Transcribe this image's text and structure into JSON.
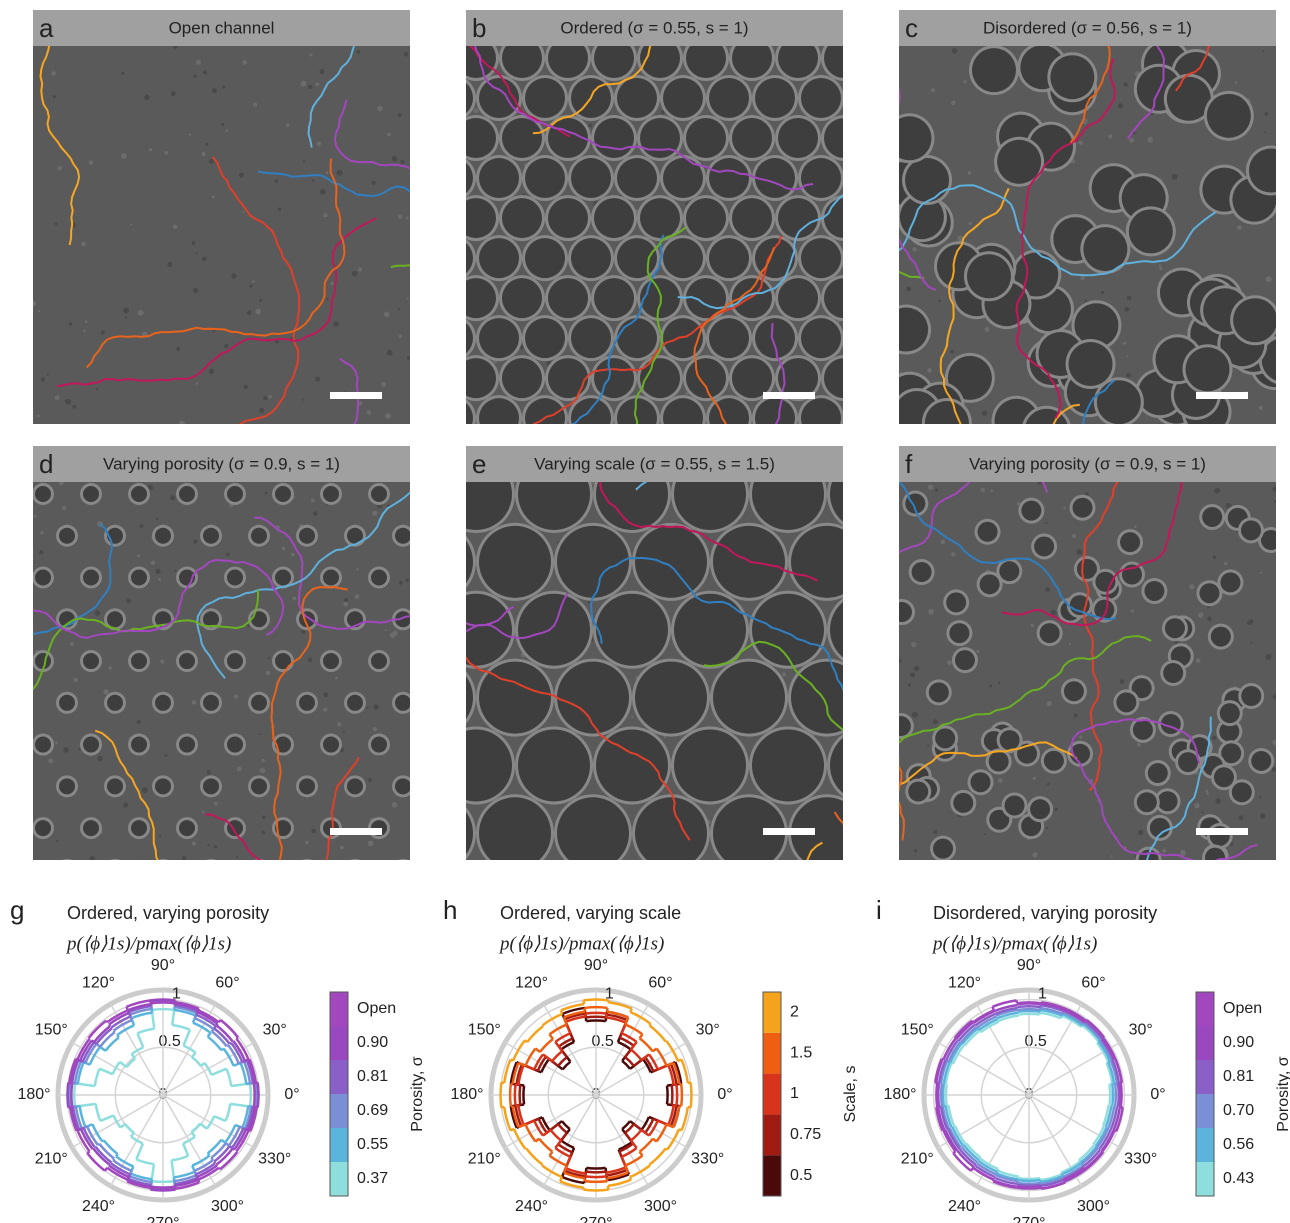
{
  "panels": [
    {
      "label": "a",
      "title": "Open channel"
    },
    {
      "label": "b",
      "title": "Ordered (σ = 0.55, s = 1)"
    },
    {
      "label": "c",
      "title": "Disordered (σ = 0.56, s = 1)"
    },
    {
      "label": "d",
      "title": "Varying porosity (σ = 0.9, s = 1)"
    },
    {
      "label": "e",
      "title": "Varying scale (σ = 0.55, s = 1.5)"
    },
    {
      "label": "f",
      "title": "Varying porosity (σ = 0.9, s = 1)"
    }
  ],
  "chart_data": [
    {
      "type": "polar",
      "label": "g",
      "title": "Ordered, varying porosity",
      "subtitle": "p(⟨ϕ⟩1s)/pmax(⟨ϕ⟩1s)",
      "rlim": [
        0,
        1.1
      ],
      "rticks": [
        0,
        0.5,
        1
      ],
      "thetaticks": [
        {
          "value": 0,
          "label": "0°"
        },
        {
          "value": 30,
          "label": "30°"
        },
        {
          "value": 60,
          "label": "60°"
        },
        {
          "value": 90,
          "label": "90°"
        },
        {
          "value": 120,
          "label": "120°"
        },
        {
          "value": 150,
          "label": "150°"
        },
        {
          "value": 180,
          "label": "180°"
        },
        {
          "value": 210,
          "label": "210°"
        },
        {
          "value": 240,
          "label": "240°"
        },
        {
          "value": 270,
          "label": "270°"
        },
        {
          "value": 300,
          "label": "300°"
        },
        {
          "value": 330,
          "label": "330°"
        }
      ],
      "colorbar_label": "Porosity, σ",
      "series": [
        {
          "name": "0.37",
          "color": "#8fdede",
          "values": [
            0.92,
            0.72,
            0.55,
            0.5,
            0.56,
            0.74,
            0.9,
            0.7,
            0.54,
            0.48,
            0.57,
            0.72,
            0.93,
            0.71,
            0.56,
            0.5,
            0.55,
            0.73,
            0.91,
            0.69,
            0.55,
            0.49,
            0.58,
            0.71
          ]
        },
        {
          "name": "0.55",
          "color": "#5ab4dc",
          "values": [
            0.98,
            0.88,
            0.8,
            0.77,
            0.82,
            0.9,
            0.97,
            0.87,
            0.79,
            0.76,
            0.83,
            0.9,
            0.98,
            0.88,
            0.8,
            0.78,
            0.81,
            0.89,
            0.97,
            0.87,
            0.8,
            0.77,
            0.82,
            0.9
          ]
        },
        {
          "name": "0.69",
          "color": "#7a8fd6",
          "values": [
            0.99,
            0.92,
            0.86,
            0.84,
            0.87,
            0.93,
            0.98,
            0.91,
            0.85,
            0.83,
            0.88,
            0.93,
            0.99,
            0.92,
            0.86,
            0.84,
            0.86,
            0.92,
            0.98,
            0.91,
            0.86,
            0.83,
            0.87,
            0.93
          ]
        },
        {
          "name": "0.81",
          "color": "#8a5fc8",
          "values": [
            1,
            0.95,
            0.9,
            0.88,
            0.91,
            0.95,
            0.99,
            0.94,
            0.89,
            0.88,
            0.91,
            0.96,
            1,
            0.95,
            0.9,
            0.89,
            0.9,
            0.95,
            0.99,
            0.94,
            0.9,
            0.88,
            0.91,
            0.95
          ]
        },
        {
          "name": "0.90",
          "color": "#9a48c0",
          "values": [
            1,
            0.97,
            0.93,
            0.92,
            0.94,
            0.97,
            1,
            0.96,
            0.93,
            0.91,
            0.94,
            0.97,
            1,
            0.97,
            0.93,
            0.92,
            0.93,
            0.97,
            1,
            0.96,
            0.93,
            0.92,
            0.94,
            0.97
          ]
        },
        {
          "name": "Open",
          "color": "#a347bf",
          "values": [
            0.96,
            0.98,
            0.97,
            0.99,
            0.96,
            0.98,
            0.97,
            1,
            0.96,
            0.98,
            0.97,
            0.99,
            0.96,
            0.98,
            0.97,
            1,
            0.96,
            0.98,
            0.97,
            0.99,
            0.96,
            0.98,
            0.97,
            0.99
          ]
        }
      ]
    },
    {
      "type": "polar",
      "label": "h",
      "title": "Ordered, varying scale",
      "subtitle": "p(⟨ϕ⟩1s)/pmax(⟨ϕ⟩1s)",
      "rlim": [
        0,
        1.1
      ],
      "rticks": [
        0,
        0.5,
        1
      ],
      "thetaticks": [
        {
          "value": 0,
          "label": "0°"
        },
        {
          "value": 30,
          "label": "30°"
        },
        {
          "value": 60,
          "label": "60°"
        },
        {
          "value": 90,
          "label": "90°"
        },
        {
          "value": 120,
          "label": "120°"
        },
        {
          "value": 150,
          "label": "150°"
        },
        {
          "value": 180,
          "label": "180°"
        },
        {
          "value": 210,
          "label": "210°"
        },
        {
          "value": 240,
          "label": "240°"
        },
        {
          "value": 270,
          "label": "270°"
        },
        {
          "value": 300,
          "label": "300°"
        },
        {
          "value": 330,
          "label": "330°"
        }
      ],
      "colorbar_label": "Scale, s",
      "series": [
        {
          "name": "0.5",
          "color": "#4a0a0a",
          "values": [
            0.75,
            0.9,
            0.62,
            0.45,
            0.6,
            0.88,
            0.78,
            0.92,
            0.6,
            0.44,
            0.62,
            0.9,
            0.76,
            0.9,
            0.61,
            0.45,
            0.6,
            0.93,
            0.77,
            0.9,
            0.62,
            0.45,
            0.6,
            0.88
          ]
        },
        {
          "name": "0.75",
          "color": "#a01c12",
          "values": [
            0.8,
            0.85,
            0.65,
            0.5,
            0.65,
            0.85,
            0.82,
            0.86,
            0.64,
            0.5,
            0.66,
            0.84,
            0.8,
            0.85,
            0.65,
            0.5,
            0.65,
            0.86,
            0.81,
            0.85,
            0.64,
            0.5,
            0.65,
            0.85
          ]
        },
        {
          "name": "1",
          "color": "#d8341c",
          "values": [
            0.85,
            0.82,
            0.7,
            0.6,
            0.7,
            0.82,
            0.86,
            0.83,
            0.7,
            0.58,
            0.7,
            0.82,
            0.85,
            0.82,
            0.7,
            0.6,
            0.7,
            0.83,
            0.86,
            0.82,
            0.7,
            0.6,
            0.7,
            0.82
          ]
        },
        {
          "name": "1.5",
          "color": "#ee5f12",
          "values": [
            0.9,
            0.88,
            0.8,
            0.75,
            0.8,
            0.88,
            0.92,
            0.88,
            0.8,
            0.74,
            0.8,
            0.88,
            0.9,
            0.88,
            0.8,
            0.75,
            0.8,
            0.88,
            0.91,
            0.88,
            0.8,
            0.75,
            0.8,
            0.88
          ]
        },
        {
          "name": "2",
          "color": "#f5a21c",
          "values": [
            1,
            0.97,
            0.93,
            0.92,
            0.94,
            0.98,
            1,
            0.96,
            0.92,
            0.91,
            0.94,
            0.97,
            1,
            0.97,
            0.93,
            0.92,
            0.93,
            0.98,
            1,
            0.96,
            0.93,
            0.92,
            0.94,
            0.97
          ]
        }
      ]
    },
    {
      "type": "polar",
      "label": "i",
      "title": "Disordered, varying porosity",
      "subtitle": "p(⟨ϕ⟩1s)/pmax(⟨ϕ⟩1s)",
      "rlim": [
        0,
        1.1
      ],
      "rticks": [
        0,
        0.5,
        1
      ],
      "thetaticks": [
        {
          "value": 0,
          "label": "0°"
        },
        {
          "value": 30,
          "label": "30°"
        },
        {
          "value": 60,
          "label": "60°"
        },
        {
          "value": 90,
          "label": "90°"
        },
        {
          "value": 120,
          "label": "120°"
        },
        {
          "value": 150,
          "label": "150°"
        },
        {
          "value": 180,
          "label": "180°"
        },
        {
          "value": 210,
          "label": "210°"
        },
        {
          "value": 240,
          "label": "240°"
        },
        {
          "value": 270,
          "label": "270°"
        },
        {
          "value": 300,
          "label": "300°"
        },
        {
          "value": 330,
          "label": "330°"
        }
      ],
      "colorbar_label": "Porosity, σ",
      "series": [
        {
          "name": "0.43",
          "color": "#8fdede",
          "values": [
            0.85,
            0.88,
            0.9,
            0.92,
            0.9,
            0.87,
            0.85,
            0.84,
            0.83,
            0.85,
            0.86,
            0.88,
            0.87,
            0.85,
            0.84,
            0.83,
            0.84,
            0.86,
            0.88,
            0.9,
            0.88,
            0.86,
            0.85,
            0.84
          ]
        },
        {
          "name": "0.56",
          "color": "#5ab4dc",
          "values": [
            0.88,
            0.9,
            0.92,
            0.94,
            0.92,
            0.9,
            0.88,
            0.87,
            0.86,
            0.88,
            0.89,
            0.9,
            0.9,
            0.88,
            0.87,
            0.86,
            0.87,
            0.89,
            0.9,
            0.92,
            0.9,
            0.89,
            0.88,
            0.87
          ]
        },
        {
          "name": "0.70",
          "color": "#7a8fd6",
          "values": [
            0.91,
            0.93,
            0.94,
            0.95,
            0.94,
            0.92,
            0.9,
            0.9,
            0.89,
            0.9,
            0.91,
            0.93,
            0.92,
            0.91,
            0.9,
            0.89,
            0.9,
            0.91,
            0.93,
            0.94,
            0.93,
            0.91,
            0.9,
            0.9
          ]
        },
        {
          "name": "0.81",
          "color": "#8a5fc8",
          "values": [
            0.94,
            0.95,
            0.96,
            0.97,
            0.96,
            0.95,
            0.93,
            0.92,
            0.92,
            0.93,
            0.94,
            0.95,
            0.95,
            0.93,
            0.92,
            0.92,
            0.93,
            0.94,
            0.95,
            0.96,
            0.95,
            0.94,
            0.93,
            0.93
          ]
        },
        {
          "name": "0.90",
          "color": "#9a48c0",
          "values": [
            0.97,
            0.98,
            0.98,
            0.99,
            0.98,
            0.97,
            0.96,
            0.95,
            0.95,
            0.96,
            0.97,
            0.98,
            0.97,
            0.96,
            0.95,
            0.95,
            0.96,
            0.97,
            0.98,
            0.99,
            0.98,
            0.97,
            0.96,
            0.96
          ]
        },
        {
          "name": "Open",
          "color": "#a347bf",
          "values": [
            0.96,
            0.98,
            0.97,
            0.99,
            0.96,
            0.98,
            0.97,
            1,
            0.96,
            0.98,
            0.97,
            0.99,
            0.96,
            0.98,
            0.97,
            1,
            0.96,
            0.98,
            0.97,
            0.99,
            0.96,
            0.98,
            0.97,
            0.99
          ]
        }
      ]
    }
  ]
}
